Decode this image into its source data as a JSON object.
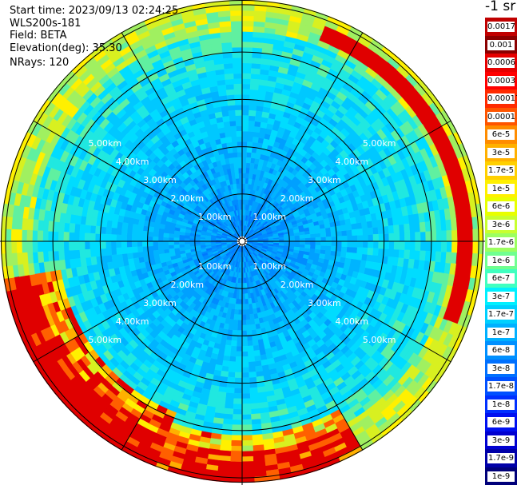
{
  "header": {
    "start_time": "Start time: 2023/09/13 02:24:25",
    "instrument": "WLS200s-181",
    "field": "Field: BETA",
    "elevation": "Elevation(deg): 35.30",
    "nrays": "NRays: 120"
  },
  "units_label": "-1 sr",
  "chart_data": {
    "type": "heatmap",
    "projection": "polar (PPI scan)",
    "range_rings_km": [
      1,
      2,
      3,
      4,
      5
    ],
    "ring_labels": [
      "1.00km",
      "2.00km",
      "3.00km",
      "4.00km",
      "5.00km"
    ],
    "max_range_km": 5.1,
    "n_rays": 120,
    "radial_lines_every_deg": 30,
    "scale": "log",
    "colorbar": {
      "ticks": [
        "0.0017",
        "0.001",
        "0.0006",
        "0.0003",
        "0.00017",
        "0.0001",
        "6e-5",
        "3e-5",
        "1.7e-5",
        "1e-5",
        "6e-6",
        "3e-6",
        "1.7e-6",
        "1e-6",
        "6e-7",
        "3e-7",
        "1.7e-7",
        "1e-7",
        "6e-8",
        "3e-8",
        "1.7e-8",
        "1e-8",
        "6e-9",
        "3e-9",
        "1.7e-9",
        "1e-9"
      ],
      "colors": [
        "#c00000",
        "#8b0000",
        "#e60000",
        "#ff0000",
        "#ff2a00",
        "#ff5500",
        "#ff8c00",
        "#ffb000",
        "#ffd000",
        "#fff000",
        "#e8ff00",
        "#c8ff30",
        "#9cff60",
        "#70ff90",
        "#40ffc0",
        "#00f0ff",
        "#00d0ff",
        "#00b0ff",
        "#0090ff",
        "#0070ff",
        "#0050ff",
        "#0030ff",
        "#0010f0",
        "#0000d0",
        "#0000a8",
        "#00007a"
      ]
    }
  }
}
